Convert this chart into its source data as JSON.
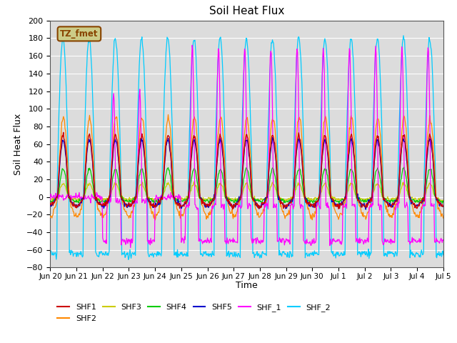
{
  "title": "Soil Heat Flux",
  "xlabel": "Time",
  "ylabel": "Soil Heat Flux",
  "ylim": [
    -80,
    200
  ],
  "yticks": [
    -80,
    -60,
    -40,
    -20,
    0,
    20,
    40,
    60,
    80,
    100,
    120,
    140,
    160,
    180,
    200
  ],
  "bg_color": "#dcdcdc",
  "colors": {
    "SHF1": "#cc0000",
    "SHF2": "#ff8800",
    "SHF3": "#cccc00",
    "SHF4": "#00cc00",
    "SHF5": "#0000cc",
    "SHF_1": "#ff00ff",
    "SHF_2": "#00ccff"
  },
  "annotation_text": "TZ_fmet",
  "annotation_bg": "#cccc88",
  "annotation_border": "#884400",
  "num_days": 15,
  "xtick_labels": [
    "Jun 20",
    "Jun 21",
    "Jun 22",
    "Jun 23",
    "Jun 24",
    "Jun 25",
    "Jun 26",
    "Jun 27",
    "Jun 28",
    "Jun 29",
    "Jun 30",
    "Jul 1",
    "Jul 2",
    "Jul 3",
    "Jul 4",
    "Jul 5"
  ]
}
